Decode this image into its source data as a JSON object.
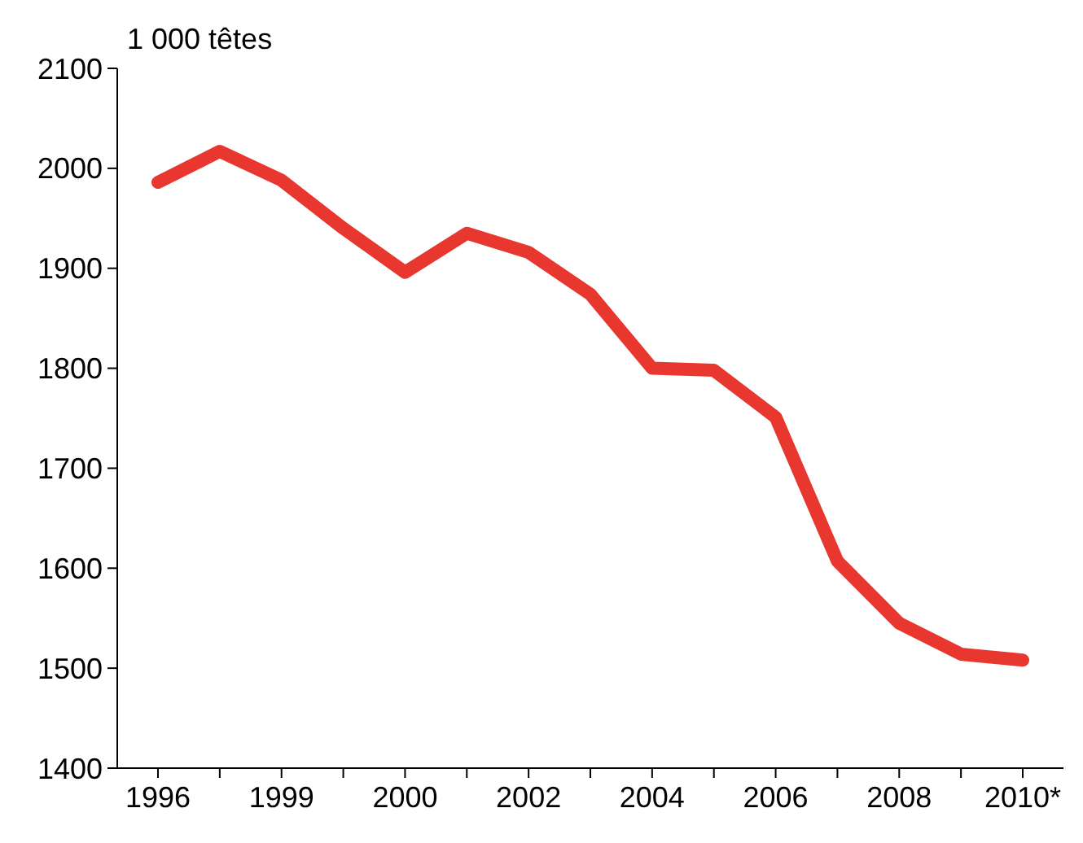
{
  "chart_data": {
    "type": "line",
    "ylabel": "1 000 têtes",
    "categories": [
      "1996",
      null,
      "1999",
      null,
      "2000",
      null,
      "2002",
      null,
      "2004",
      null,
      "2006",
      null,
      "2008",
      null,
      "2010*"
    ],
    "series": [
      {
        "color": "#e8372f",
        "values": [
          1986,
          2017,
          1988,
          1940,
          1896,
          1935,
          1916,
          1874,
          1800,
          1798,
          1751,
          1607,
          1545,
          1514,
          1508
        ]
      }
    ],
    "ylim": [
      1400,
      2100
    ],
    "yticks": [
      1400,
      1500,
      1600,
      1700,
      1800,
      1900,
      2000,
      2100
    ],
    "grid": false,
    "line_style": "solid"
  }
}
